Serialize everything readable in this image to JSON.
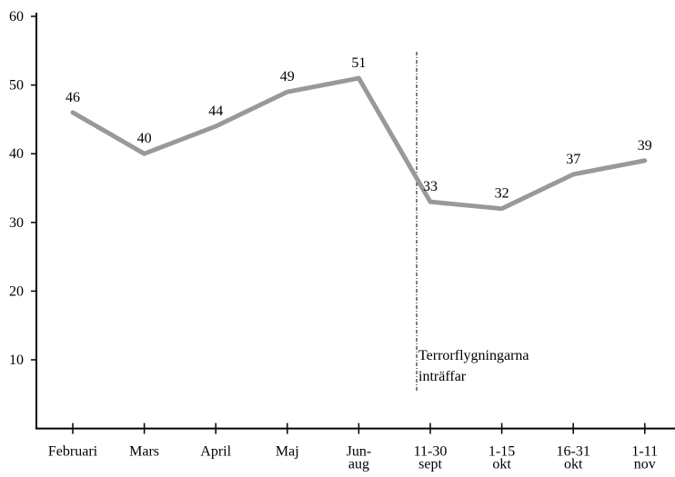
{
  "chart_data": {
    "type": "line",
    "categories": [
      "Februari",
      "Mars",
      "April",
      "Maj",
      "Jun-\naug",
      "11-30\nsept",
      "1-15\nokt",
      "16-31\nokt",
      "1-11\nnov"
    ],
    "values": [
      46,
      40,
      44,
      49,
      51,
      33,
      32,
      37,
      39
    ],
    "color": "#999999",
    "ylim": [
      0,
      60
    ],
    "yticks": [
      10,
      20,
      30,
      40,
      50,
      60
    ],
    "annotation": "Terrorflygningarna\ninträffar"
  }
}
